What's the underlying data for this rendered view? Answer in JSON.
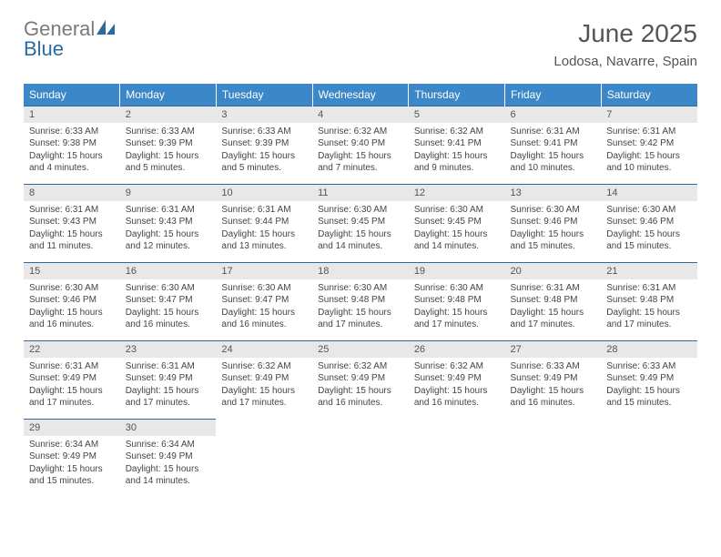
{
  "brand": {
    "word1": "General",
    "word2": "Blue"
  },
  "title": "June 2025",
  "location": "Lodosa, Navarre, Spain",
  "colors": {
    "header_bg": "#3b87c8",
    "header_text": "#ffffff",
    "daynum_bg": "#e8e8e8",
    "border_top": "#2a6aa0",
    "body_text": "#444444",
    "title_text": "#555555"
  },
  "dow": [
    "Sunday",
    "Monday",
    "Tuesday",
    "Wednesday",
    "Thursday",
    "Friday",
    "Saturday"
  ],
  "weeks": [
    {
      "nums": [
        "1",
        "2",
        "3",
        "4",
        "5",
        "6",
        "7"
      ],
      "cells": [
        {
          "sunrise": "6:33 AM",
          "sunset": "9:38 PM",
          "daylight": "15 hours and 4 minutes."
        },
        {
          "sunrise": "6:33 AM",
          "sunset": "9:39 PM",
          "daylight": "15 hours and 5 minutes."
        },
        {
          "sunrise": "6:33 AM",
          "sunset": "9:39 PM",
          "daylight": "15 hours and 5 minutes."
        },
        {
          "sunrise": "6:32 AM",
          "sunset": "9:40 PM",
          "daylight": "15 hours and 7 minutes."
        },
        {
          "sunrise": "6:32 AM",
          "sunset": "9:41 PM",
          "daylight": "15 hours and 9 minutes."
        },
        {
          "sunrise": "6:31 AM",
          "sunset": "9:41 PM",
          "daylight": "15 hours and 10 minutes."
        },
        {
          "sunrise": "6:31 AM",
          "sunset": "9:42 PM",
          "daylight": "15 hours and 10 minutes."
        }
      ]
    },
    {
      "nums": [
        "8",
        "9",
        "10",
        "11",
        "12",
        "13",
        "14"
      ],
      "cells": [
        {
          "sunrise": "6:31 AM",
          "sunset": "9:43 PM",
          "daylight": "15 hours and 11 minutes."
        },
        {
          "sunrise": "6:31 AM",
          "sunset": "9:43 PM",
          "daylight": "15 hours and 12 minutes."
        },
        {
          "sunrise": "6:31 AM",
          "sunset": "9:44 PM",
          "daylight": "15 hours and 13 minutes."
        },
        {
          "sunrise": "6:30 AM",
          "sunset": "9:45 PM",
          "daylight": "15 hours and 14 minutes."
        },
        {
          "sunrise": "6:30 AM",
          "sunset": "9:45 PM",
          "daylight": "15 hours and 14 minutes."
        },
        {
          "sunrise": "6:30 AM",
          "sunset": "9:46 PM",
          "daylight": "15 hours and 15 minutes."
        },
        {
          "sunrise": "6:30 AM",
          "sunset": "9:46 PM",
          "daylight": "15 hours and 15 minutes."
        }
      ]
    },
    {
      "nums": [
        "15",
        "16",
        "17",
        "18",
        "19",
        "20",
        "21"
      ],
      "cells": [
        {
          "sunrise": "6:30 AM",
          "sunset": "9:46 PM",
          "daylight": "15 hours and 16 minutes."
        },
        {
          "sunrise": "6:30 AM",
          "sunset": "9:47 PM",
          "daylight": "15 hours and 16 minutes."
        },
        {
          "sunrise": "6:30 AM",
          "sunset": "9:47 PM",
          "daylight": "15 hours and 16 minutes."
        },
        {
          "sunrise": "6:30 AM",
          "sunset": "9:48 PM",
          "daylight": "15 hours and 17 minutes."
        },
        {
          "sunrise": "6:30 AM",
          "sunset": "9:48 PM",
          "daylight": "15 hours and 17 minutes."
        },
        {
          "sunrise": "6:31 AM",
          "sunset": "9:48 PM",
          "daylight": "15 hours and 17 minutes."
        },
        {
          "sunrise": "6:31 AM",
          "sunset": "9:48 PM",
          "daylight": "15 hours and 17 minutes."
        }
      ]
    },
    {
      "nums": [
        "22",
        "23",
        "24",
        "25",
        "26",
        "27",
        "28"
      ],
      "cells": [
        {
          "sunrise": "6:31 AM",
          "sunset": "9:49 PM",
          "daylight": "15 hours and 17 minutes."
        },
        {
          "sunrise": "6:31 AM",
          "sunset": "9:49 PM",
          "daylight": "15 hours and 17 minutes."
        },
        {
          "sunrise": "6:32 AM",
          "sunset": "9:49 PM",
          "daylight": "15 hours and 17 minutes."
        },
        {
          "sunrise": "6:32 AM",
          "sunset": "9:49 PM",
          "daylight": "15 hours and 16 minutes."
        },
        {
          "sunrise": "6:32 AM",
          "sunset": "9:49 PM",
          "daylight": "15 hours and 16 minutes."
        },
        {
          "sunrise": "6:33 AM",
          "sunset": "9:49 PM",
          "daylight": "15 hours and 16 minutes."
        },
        {
          "sunrise": "6:33 AM",
          "sunset": "9:49 PM",
          "daylight": "15 hours and 15 minutes."
        }
      ]
    },
    {
      "nums": [
        "29",
        "30",
        "",
        "",
        "",
        "",
        ""
      ],
      "cells": [
        {
          "sunrise": "6:34 AM",
          "sunset": "9:49 PM",
          "daylight": "15 hours and 15 minutes."
        },
        {
          "sunrise": "6:34 AM",
          "sunset": "9:49 PM",
          "daylight": "15 hours and 14 minutes."
        },
        null,
        null,
        null,
        null,
        null
      ]
    }
  ],
  "labels": {
    "sunrise": "Sunrise:",
    "sunset": "Sunset:",
    "daylight": "Daylight:"
  }
}
